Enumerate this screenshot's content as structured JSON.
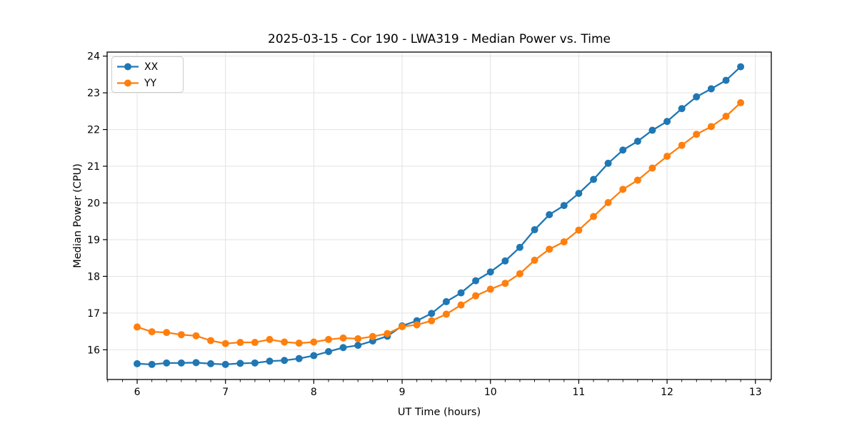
{
  "figure": {
    "background": "#ffffff"
  },
  "chart_data": {
    "type": "line",
    "title": "2025-03-15 - Cor 190 - LWA319 - Median Power vs. Time",
    "xlabel": "UT Time (hours)",
    "ylabel": "Median Power (CPU)",
    "grid": true,
    "legend_position": "upper-left",
    "xlim": [
      5.66,
      13.18
    ],
    "ylim": [
      15.19,
      24.11
    ],
    "x_ticks": [
      6,
      7,
      8,
      9,
      10,
      11,
      12,
      13
    ],
    "y_ticks": [
      16,
      17,
      18,
      19,
      20,
      21,
      22,
      23,
      24
    ],
    "x_minor_divisions": 6,
    "x": [
      6.0,
      6.167,
      6.333,
      6.5,
      6.667,
      6.833,
      7.0,
      7.167,
      7.333,
      7.5,
      7.667,
      7.833,
      8.0,
      8.167,
      8.333,
      8.5,
      8.667,
      8.833,
      9.0,
      9.167,
      9.333,
      9.5,
      9.667,
      9.833,
      10.0,
      10.167,
      10.333,
      10.5,
      10.667,
      10.833,
      11.0,
      11.167,
      11.333,
      11.5,
      11.667,
      11.833,
      12.0,
      12.167,
      12.333,
      12.5,
      12.667,
      12.833
    ],
    "series": [
      {
        "name": "XX",
        "color": "#1f77b4",
        "values": [
          15.62,
          15.6,
          15.64,
          15.64,
          15.65,
          15.62,
          15.6,
          15.63,
          15.64,
          15.69,
          15.71,
          15.76,
          15.84,
          15.95,
          16.06,
          16.12,
          16.24,
          16.37,
          16.65,
          16.79,
          16.99,
          17.31,
          17.55,
          17.88,
          18.12,
          18.42,
          18.79,
          19.27,
          19.68,
          19.93,
          20.26,
          20.64,
          21.08,
          21.44,
          21.68,
          21.98,
          22.22,
          22.57,
          22.89,
          23.11,
          23.34,
          23.71
        ]
      },
      {
        "name": "YY",
        "color": "#ff7f0e",
        "values": [
          16.62,
          16.49,
          16.47,
          16.41,
          16.38,
          16.25,
          16.17,
          16.2,
          16.2,
          16.28,
          16.21,
          16.18,
          16.21,
          16.28,
          16.32,
          16.3,
          16.36,
          16.44,
          16.63,
          16.68,
          16.79,
          16.97,
          17.22,
          17.47,
          17.65,
          17.81,
          18.07,
          18.44,
          18.74,
          18.94,
          19.26,
          19.63,
          20.01,
          20.37,
          20.62,
          20.95,
          21.27,
          21.57,
          21.87,
          22.08,
          22.36,
          22.73
        ]
      }
    ]
  }
}
